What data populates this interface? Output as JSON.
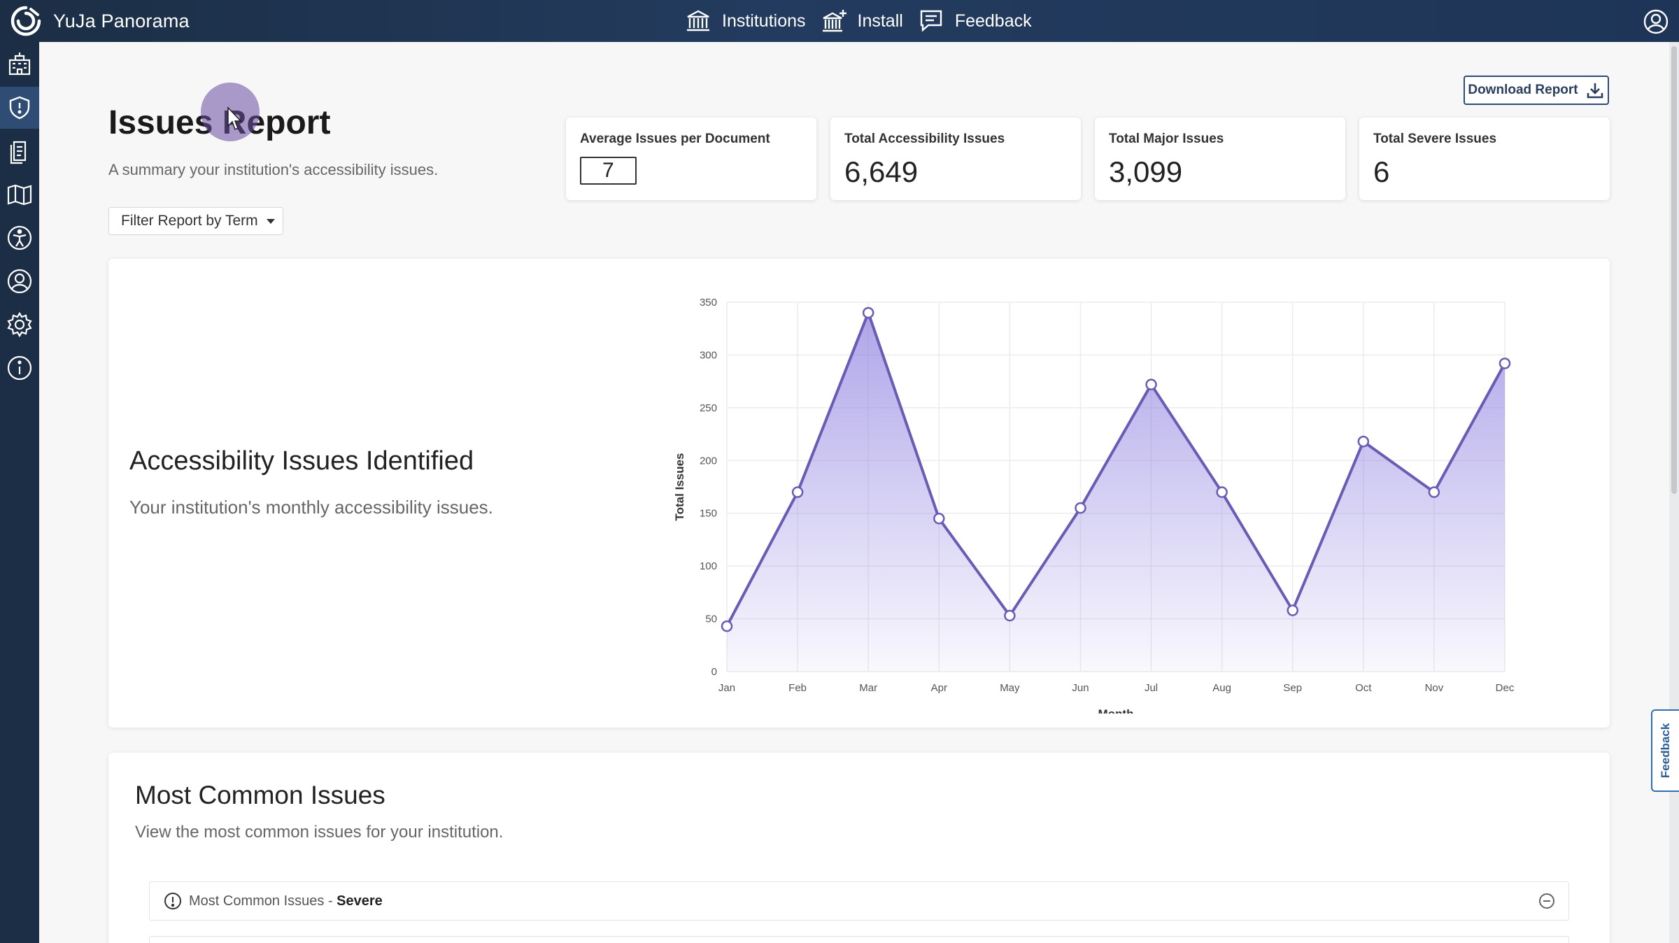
{
  "app": {
    "name": "YuJa Panorama"
  },
  "topnav": [
    {
      "label": "Institutions",
      "icon": "institution-icon"
    },
    {
      "label": "Install",
      "icon": "install-icon"
    },
    {
      "label": "Feedback",
      "icon": "feedback-icon"
    }
  ],
  "sidebar": {
    "items": [
      {
        "name": "institution-icon"
      },
      {
        "name": "shield-icon",
        "active": true
      },
      {
        "name": "document-icon"
      },
      {
        "name": "book-icon"
      },
      {
        "name": "accessibility-icon"
      },
      {
        "name": "user-icon"
      },
      {
        "name": "gear-icon"
      },
      {
        "name": "info-icon"
      }
    ]
  },
  "header": {
    "title": "Issues Report",
    "subtitle": "A summary your institution's accessibility issues.",
    "filter_label": "Filter Report by Term",
    "download_label": "Download Report"
  },
  "stats": [
    {
      "label": "Average Issues per Document",
      "value": "7"
    },
    {
      "label": "Total Accessibility Issues",
      "value": "6,649"
    },
    {
      "label": "Total Major Issues",
      "value": "3,099"
    },
    {
      "label": "Total Severe Issues",
      "value": "6"
    }
  ],
  "chart_section": {
    "title": "Accessibility Issues Identified",
    "subtitle": "Your institution's monthly accessibility issues."
  },
  "chart_data": {
    "type": "area",
    "categories": [
      "Jan",
      "Feb",
      "Mar",
      "Apr",
      "May",
      "Jun",
      "Jul",
      "Aug",
      "Sep",
      "Oct",
      "Nov",
      "Dec"
    ],
    "values": [
      43,
      170,
      340,
      145,
      53,
      155,
      272,
      170,
      58,
      218,
      170,
      292
    ],
    "xlabel": "Month",
    "ylabel": "Total Issues",
    "ylim": [
      0,
      350
    ],
    "yticks": [
      0,
      50,
      100,
      150,
      200,
      250,
      300,
      350
    ],
    "grid": true,
    "line_color": "#6a5bb5",
    "fill_color": "#8c7fe0"
  },
  "common": {
    "title": "Most Common Issues",
    "subtitle": "View the most common issues for your institution.",
    "accordion_prefix": "Most Common Issues - ",
    "accordion_level": "Severe"
  },
  "feedback_tab": "Feedback",
  "colors": {
    "topbar": "#1b2e45",
    "accent": "#2f4d74"
  }
}
